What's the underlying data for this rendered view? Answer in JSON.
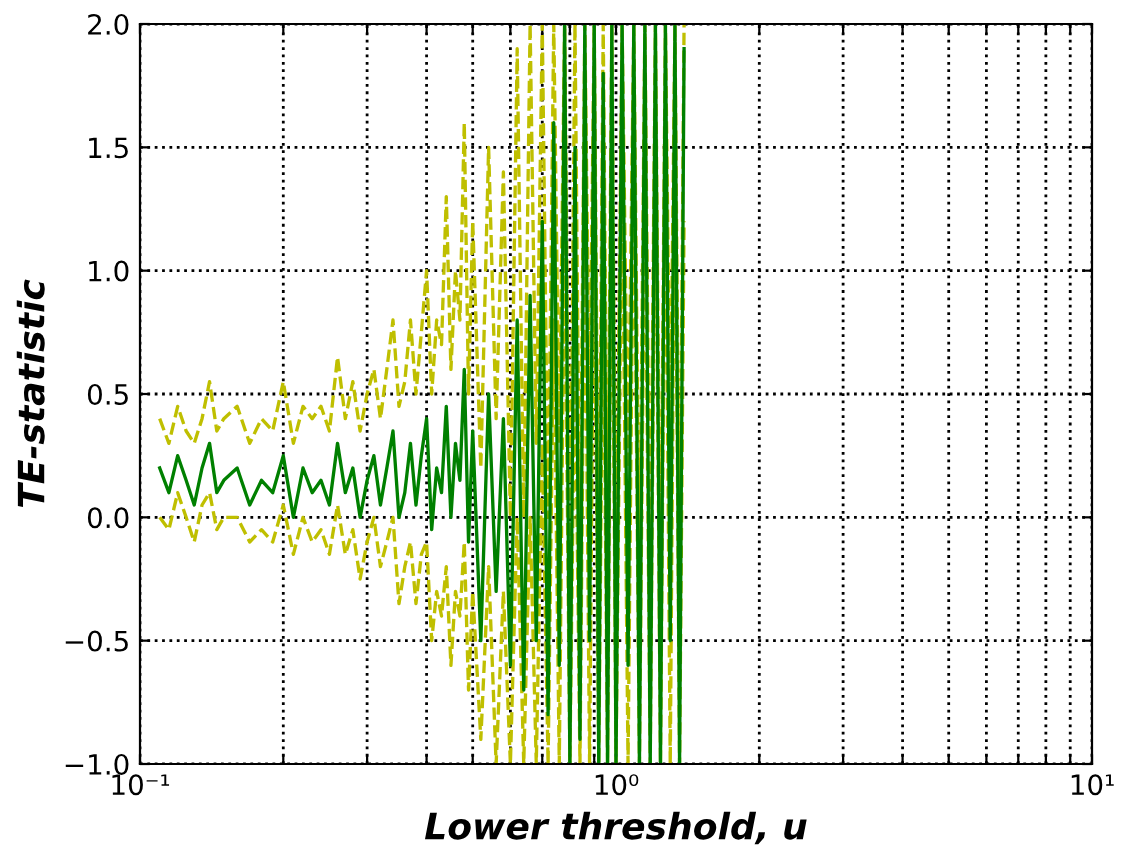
{
  "chart_data": {
    "type": "line",
    "xlabel": "Lower threshold, u",
    "ylabel": "TE-statistic",
    "x": [
      0.11,
      0.115,
      0.12,
      0.125,
      0.13,
      0.135,
      0.14,
      0.145,
      0.15,
      0.16,
      0.17,
      0.18,
      0.19,
      0.2,
      0.21,
      0.22,
      0.23,
      0.24,
      0.25,
      0.26,
      0.27,
      0.28,
      0.29,
      0.3,
      0.31,
      0.32,
      0.33,
      0.34,
      0.35,
      0.36,
      0.37,
      0.38,
      0.39,
      0.4,
      0.41,
      0.42,
      0.43,
      0.44,
      0.45,
      0.46,
      0.47,
      0.48,
      0.49,
      0.5,
      0.52,
      0.54,
      0.56,
      0.58,
      0.6,
      0.62,
      0.64,
      0.66,
      0.68,
      0.7,
      0.72,
      0.74,
      0.76,
      0.78,
      0.8,
      0.82,
      0.84,
      0.86,
      0.88,
      0.9,
      0.92,
      0.94,
      0.96,
      0.98,
      1.0,
      1.03,
      1.06,
      1.09,
      1.12,
      1.15,
      1.18,
      1.21,
      1.24,
      1.27,
      1.3,
      1.33,
      1.36,
      1.39
    ],
    "series": [
      {
        "color": "#bfbf00",
        "line_style": "dashed",
        "values": [
          0.4,
          0.3,
          0.45,
          0.35,
          0.3,
          0.4,
          0.55,
          0.35,
          0.4,
          0.45,
          0.3,
          0.4,
          0.35,
          0.55,
          0.3,
          0.45,
          0.4,
          0.45,
          0.35,
          0.65,
          0.4,
          0.55,
          0.35,
          0.5,
          0.6,
          0.4,
          0.6,
          0.8,
          0.45,
          0.55,
          0.8,
          0.5,
          0.75,
          1.0,
          0.5,
          0.8,
          0.7,
          1.3,
          0.6,
          1.0,
          0.8,
          1.6,
          0.5,
          1.2,
          0.2,
          1.5,
          0.4,
          1.4,
          0.0,
          1.9,
          0.0,
          2.0,
          0.3,
          2.0,
          0.0,
          2.0,
          0.3,
          2.0,
          -0.3,
          2.0,
          -0.2,
          2.0,
          0.4,
          2.0,
          -0.3,
          2.0,
          -0.2,
          2.0,
          -0.4,
          2.0,
          0.2,
          2.0,
          -0.3,
          2.0,
          -0.3,
          2.0,
          -0.4,
          2.0,
          0.3,
          2.0,
          -0.3,
          2.0
        ]
      },
      {
        "color": "#bfbf00",
        "line_style": "dashed",
        "values": [
          0.0,
          -0.05,
          0.1,
          0.0,
          -0.1,
          0.05,
          0.1,
          -0.05,
          0.0,
          0.0,
          -0.1,
          -0.05,
          -0.1,
          0.05,
          -0.15,
          0.0,
          -0.1,
          -0.05,
          -0.15,
          0.05,
          -0.15,
          -0.05,
          -0.25,
          -0.1,
          0.0,
          -0.2,
          -0.1,
          0.0,
          -0.35,
          -0.2,
          -0.1,
          -0.35,
          -0.15,
          -0.1,
          -0.5,
          -0.3,
          -0.4,
          -0.2,
          -0.6,
          -0.3,
          -0.4,
          -0.1,
          -0.7,
          -0.3,
          -0.9,
          -0.2,
          -1.0,
          -0.3,
          -1.0,
          0.0,
          -1.0,
          0.0,
          -1.0,
          0.3,
          -1.0,
          0.8,
          -1.0,
          1.2,
          -1.0,
          0.7,
          -1.0,
          1.2,
          -1.0,
          1.3,
          -1.0,
          1.0,
          -1.0,
          1.5,
          -1.0,
          1.4,
          -1.0,
          1.5,
          -1.0,
          1.4,
          -1.0,
          1.6,
          -1.0,
          1.5,
          -1.0,
          1.6,
          -1.0,
          1.2
        ]
      },
      {
        "color": "#008000",
        "line_style": "solid",
        "values": [
          0.2,
          0.1,
          0.25,
          0.15,
          0.05,
          0.2,
          0.3,
          0.1,
          0.15,
          0.2,
          0.05,
          0.15,
          0.1,
          0.25,
          0.0,
          0.2,
          0.1,
          0.15,
          0.05,
          0.3,
          0.1,
          0.2,
          0.0,
          0.15,
          0.25,
          0.05,
          0.2,
          0.35,
          0.0,
          0.1,
          0.3,
          0.05,
          0.25,
          0.4,
          -0.05,
          0.2,
          0.1,
          0.45,
          0.0,
          0.3,
          0.15,
          0.6,
          -0.1,
          0.35,
          -0.5,
          0.5,
          -0.3,
          0.4,
          -0.6,
          0.8,
          -0.7,
          0.9,
          -0.5,
          1.2,
          -0.8,
          1.6,
          -0.6,
          2.0,
          -1.0,
          1.5,
          -0.9,
          2.0,
          -0.5,
          2.0,
          -1.0,
          1.8,
          -1.0,
          2.0,
          -1.0,
          2.0,
          -0.6,
          2.0,
          -1.0,
          2.0,
          -1.0,
          2.0,
          -1.0,
          2.0,
          -0.5,
          2.0,
          -1.0,
          1.9
        ]
      }
    ],
    "log": "x",
    "xlim": [
      0.1,
      10
    ],
    "xticks": [
      {
        "value": 0.1,
        "label": "10⁻¹"
      },
      {
        "value": 0.2,
        "label": null
      },
      {
        "value": 0.3,
        "label": null
      },
      {
        "value": 0.4,
        "label": null
      },
      {
        "value": 0.5,
        "label": null
      },
      {
        "value": 0.6,
        "label": null
      },
      {
        "value": 0.7,
        "label": null
      },
      {
        "value": 0.8,
        "label": null
      },
      {
        "value": 0.9,
        "label": null
      },
      {
        "value": 1,
        "label": "10⁰"
      },
      {
        "value": 2,
        "label": null
      },
      {
        "value": 3,
        "label": null
      },
      {
        "value": 4,
        "label": null
      },
      {
        "value": 5,
        "label": null
      },
      {
        "value": 6,
        "label": null
      },
      {
        "value": 7,
        "label": null
      },
      {
        "value": 8,
        "label": null
      },
      {
        "value": 9,
        "label": null
      },
      {
        "value": 10,
        "label": "10¹"
      }
    ],
    "ylim": [
      -1.0,
      2.0
    ],
    "yticks": [
      {
        "value": -1.0,
        "label": "−1.0"
      },
      {
        "value": -0.5,
        "label": "−0.5"
      },
      {
        "value": 0.0,
        "label": "0.0"
      },
      0.5,
      {
        "value": 1.0,
        "label": "1.0"
      },
      1.5,
      {
        "value": 2.0,
        "label": "2.0"
      }
    ],
    "grid": true
  }
}
